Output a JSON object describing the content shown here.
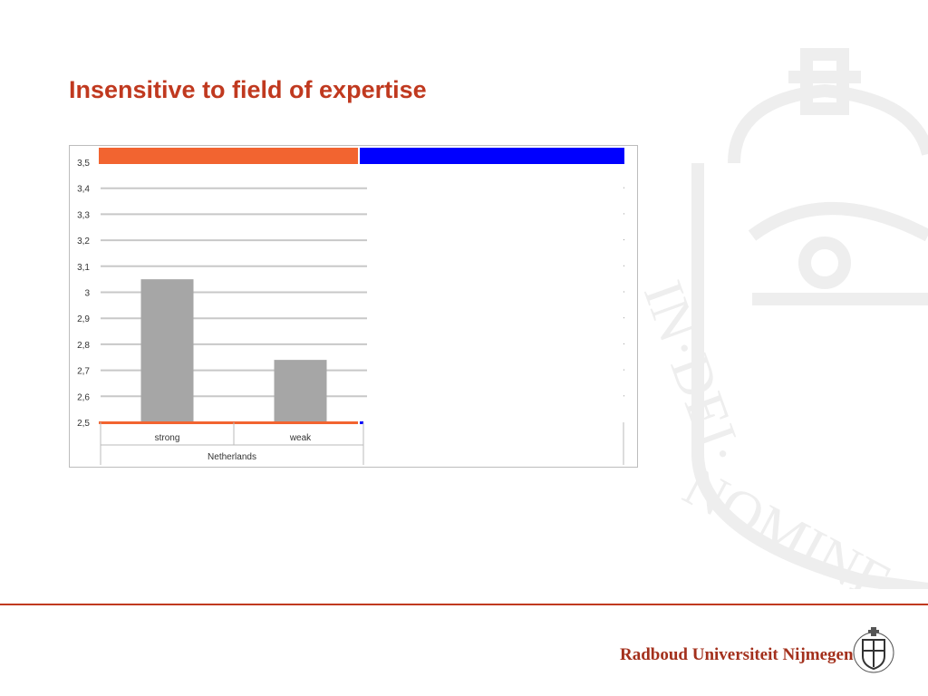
{
  "slide": {
    "title": "Insensitive to field of expertise"
  },
  "colors": {
    "title": "#c0391f",
    "bar": "#a6a6a6",
    "orange_band": "#f26430",
    "blue_band": "#0000ff",
    "grid": "#c8c8c8"
  },
  "chart_data": {
    "type": "bar",
    "group": "Netherlands",
    "categories": [
      "strong",
      "weak"
    ],
    "values": [
      3.05,
      2.74
    ],
    "yticks": [
      "2,5",
      "2,6",
      "2,7",
      "2,8",
      "2,9",
      "3",
      "3,1",
      "3,2",
      "3,3",
      "3,4",
      "3,5"
    ],
    "ylim": [
      2.5,
      3.5
    ],
    "grid": true,
    "title": "",
    "xlabel": "",
    "ylabel": ""
  },
  "footer": {
    "brand": "Radboud Universiteit Nijmegen",
    "seal_motto": "IN·DEI·NOMINE·FELICITER"
  }
}
